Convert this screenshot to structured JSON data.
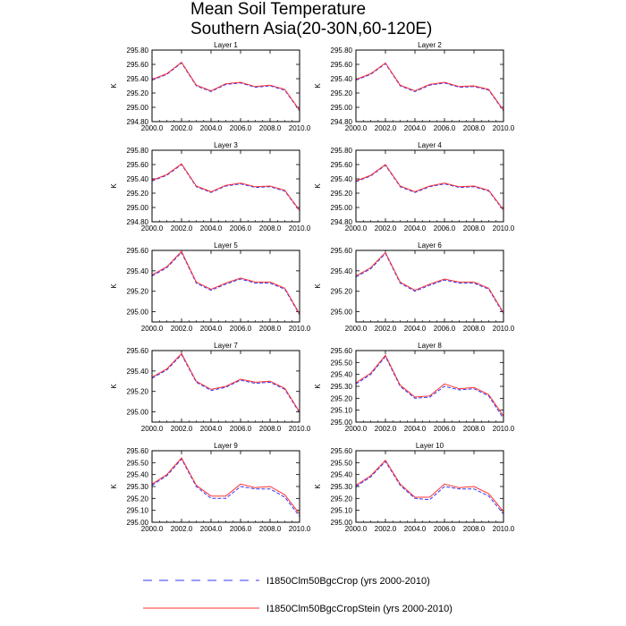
{
  "figure": {
    "title_line1": "Mean Soil Temperature",
    "title_line2": "Southern Asia(20-30N,60-120E)"
  },
  "legend": {
    "items": [
      {
        "label": "I1850Clm50BgcCrop (yrs 2000-2010)",
        "color": "#3333ff",
        "style": "dashed"
      },
      {
        "label": "I1850Clm50BgcCropStein (yrs 2000-2010)",
        "color": "#ff3333",
        "style": "solid"
      }
    ]
  },
  "chart_data": [
    {
      "type": "line",
      "title": "Layer 1",
      "xlabel": "",
      "ylabel": "K",
      "xlim": [
        2000,
        2010
      ],
      "ylim": [
        294.8,
        295.8
      ],
      "xticks": [
        2000,
        2002,
        2004,
        2006,
        2008,
        2010
      ],
      "xticklabels": [
        "2000.0",
        "2002.0",
        "2004.0",
        "2006.0",
        "2008.0",
        "2010.0"
      ],
      "yticks": [
        294.8,
        295.0,
        295.2,
        295.4,
        295.6,
        295.8
      ],
      "yticklabels": [
        "294.80",
        "295.00",
        "295.20",
        "295.40",
        "295.60",
        "295.80"
      ],
      "x": [
        2000,
        2001,
        2002,
        2003,
        2004,
        2005,
        2006,
        2007,
        2008,
        2009,
        2010
      ],
      "series": [
        {
          "name": "I1850Clm50BgcCrop (yrs 2000-2010)",
          "color": "#3333ff",
          "style": "dashed",
          "values": [
            295.38,
            295.46,
            295.62,
            295.3,
            295.22,
            295.32,
            295.34,
            295.28,
            295.3,
            295.24,
            294.95
          ]
        },
        {
          "name": "I1850Clm50BgcCropStein (yrs 2000-2010)",
          "color": "#ff3333",
          "style": "solid",
          "values": [
            295.39,
            295.47,
            295.63,
            295.31,
            295.23,
            295.33,
            295.35,
            295.29,
            295.31,
            295.25,
            294.96
          ]
        }
      ]
    },
    {
      "type": "line",
      "title": "Layer 2",
      "xlabel": "",
      "ylabel": "K",
      "xlim": [
        2000,
        2010
      ],
      "ylim": [
        294.8,
        295.8
      ],
      "xticks": [
        2000,
        2002,
        2004,
        2006,
        2008,
        2010
      ],
      "xticklabels": [
        "2000.0",
        "2002.0",
        "2004.0",
        "2006.0",
        "2008.0",
        "2010.0"
      ],
      "yticks": [
        294.8,
        295.0,
        295.2,
        295.4,
        295.6,
        295.8
      ],
      "yticklabels": [
        "294.80",
        "295.00",
        "295.20",
        "295.40",
        "295.60",
        "295.80"
      ],
      "x": [
        2000,
        2001,
        2002,
        2003,
        2004,
        2005,
        2006,
        2007,
        2008,
        2009,
        2010
      ],
      "series": [
        {
          "name": "I1850Clm50BgcCrop (yrs 2000-2010)",
          "color": "#3333ff",
          "style": "dashed",
          "values": [
            295.38,
            295.46,
            295.61,
            295.3,
            295.22,
            295.31,
            295.34,
            295.28,
            295.29,
            295.24,
            294.95
          ]
        },
        {
          "name": "I1850Clm50BgcCropStein (yrs 2000-2010)",
          "color": "#ff3333",
          "style": "solid",
          "values": [
            295.39,
            295.47,
            295.62,
            295.31,
            295.23,
            295.32,
            295.35,
            295.29,
            295.3,
            295.25,
            294.96
          ]
        }
      ]
    },
    {
      "type": "line",
      "title": "Layer 3",
      "xlabel": "",
      "ylabel": "K",
      "xlim": [
        2000,
        2010
      ],
      "ylim": [
        294.8,
        295.8
      ],
      "xticks": [
        2000,
        2002,
        2004,
        2006,
        2008,
        2010
      ],
      "xticklabels": [
        "2000.0",
        "2002.0",
        "2004.0",
        "2006.0",
        "2008.0",
        "2010.0"
      ],
      "yticks": [
        294.8,
        295.0,
        295.2,
        295.4,
        295.6,
        295.8
      ],
      "yticklabels": [
        "294.80",
        "295.00",
        "295.20",
        "295.40",
        "295.60",
        "295.80"
      ],
      "x": [
        2000,
        2001,
        2002,
        2003,
        2004,
        2005,
        2006,
        2007,
        2008,
        2009,
        2010
      ],
      "series": [
        {
          "name": "I1850Clm50BgcCrop (yrs 2000-2010)",
          "color": "#3333ff",
          "style": "dashed",
          "values": [
            295.37,
            295.45,
            295.6,
            295.29,
            295.21,
            295.3,
            295.33,
            295.28,
            295.29,
            295.23,
            294.95
          ]
        },
        {
          "name": "I1850Clm50BgcCropStein (yrs 2000-2010)",
          "color": "#ff3333",
          "style": "solid",
          "values": [
            295.38,
            295.46,
            295.61,
            295.3,
            295.22,
            295.31,
            295.34,
            295.29,
            295.3,
            295.24,
            294.96
          ]
        }
      ]
    },
    {
      "type": "line",
      "title": "Layer 4",
      "xlabel": "",
      "ylabel": "K",
      "xlim": [
        2000,
        2010
      ],
      "ylim": [
        294.8,
        295.8
      ],
      "xticks": [
        2000,
        2002,
        2004,
        2006,
        2008,
        2010
      ],
      "xticklabels": [
        "2000.0",
        "2002.0",
        "2004.0",
        "2006.0",
        "2008.0",
        "2010.0"
      ],
      "yticks": [
        294.8,
        295.0,
        295.2,
        295.4,
        295.6,
        295.8
      ],
      "yticklabels": [
        "294.80",
        "295.00",
        "295.20",
        "295.40",
        "295.60",
        "295.80"
      ],
      "x": [
        2000,
        2001,
        2002,
        2003,
        2004,
        2005,
        2006,
        2007,
        2008,
        2009,
        2010
      ],
      "series": [
        {
          "name": "I1850Clm50BgcCrop (yrs 2000-2010)",
          "color": "#3333ff",
          "style": "dashed",
          "values": [
            295.36,
            295.44,
            295.59,
            295.29,
            295.21,
            295.29,
            295.33,
            295.28,
            295.29,
            295.23,
            294.96
          ]
        },
        {
          "name": "I1850Clm50BgcCropStein (yrs 2000-2010)",
          "color": "#ff3333",
          "style": "solid",
          "values": [
            295.37,
            295.45,
            295.6,
            295.3,
            295.22,
            295.3,
            295.34,
            295.29,
            295.3,
            295.24,
            294.97
          ]
        }
      ]
    },
    {
      "type": "line",
      "title": "Layer 5",
      "xlabel": "",
      "ylabel": "K",
      "xlim": [
        2000,
        2010
      ],
      "ylim": [
        294.9,
        295.6
      ],
      "xticks": [
        2000,
        2002,
        2004,
        2006,
        2008,
        2010
      ],
      "xticklabels": [
        "2000.0",
        "2002.0",
        "2004.0",
        "2006.0",
        "2008.0",
        "2010.0"
      ],
      "yticks": [
        295.0,
        295.2,
        295.4,
        295.6
      ],
      "yticklabels": [
        "295.00",
        "295.20",
        "295.40",
        "295.60"
      ],
      "x": [
        2000,
        2001,
        2002,
        2003,
        2004,
        2005,
        2006,
        2007,
        2008,
        2009,
        2010
      ],
      "series": [
        {
          "name": "I1850Clm50BgcCrop (yrs 2000-2010)",
          "color": "#3333ff",
          "style": "dashed",
          "values": [
            295.35,
            295.43,
            295.58,
            295.28,
            295.21,
            295.27,
            295.32,
            295.28,
            295.28,
            295.22,
            294.97
          ]
        },
        {
          "name": "I1850Clm50BgcCropStein (yrs 2000-2010)",
          "color": "#ff3333",
          "style": "solid",
          "values": [
            295.36,
            295.44,
            295.59,
            295.29,
            295.22,
            295.28,
            295.33,
            295.29,
            295.29,
            295.23,
            294.98
          ]
        }
      ]
    },
    {
      "type": "line",
      "title": "Layer 6",
      "xlabel": "",
      "ylabel": "K",
      "xlim": [
        2000,
        2010
      ],
      "ylim": [
        294.9,
        295.6
      ],
      "xticks": [
        2000,
        2002,
        2004,
        2006,
        2008,
        2010
      ],
      "xticklabels": [
        "2000.0",
        "2002.0",
        "2004.0",
        "2006.0",
        "2008.0",
        "2010.0"
      ],
      "yticks": [
        295.0,
        295.2,
        295.4,
        295.6
      ],
      "yticklabels": [
        "295.00",
        "295.20",
        "295.40",
        "295.60"
      ],
      "x": [
        2000,
        2001,
        2002,
        2003,
        2004,
        2005,
        2006,
        2007,
        2008,
        2009,
        2010
      ],
      "series": [
        {
          "name": "I1850Clm50BgcCrop (yrs 2000-2010)",
          "color": "#3333ff",
          "style": "dashed",
          "values": [
            295.34,
            295.42,
            295.57,
            295.28,
            295.2,
            295.26,
            295.31,
            295.28,
            295.28,
            295.22,
            294.98
          ]
        },
        {
          "name": "I1850Clm50BgcCropStein (yrs 2000-2010)",
          "color": "#ff3333",
          "style": "solid",
          "values": [
            295.35,
            295.43,
            295.58,
            295.29,
            295.21,
            295.27,
            295.32,
            295.29,
            295.29,
            295.23,
            294.99
          ]
        }
      ]
    },
    {
      "type": "line",
      "title": "Layer 7",
      "xlabel": "",
      "ylabel": "K",
      "xlim": [
        2000,
        2010
      ],
      "ylim": [
        294.9,
        295.6
      ],
      "xticks": [
        2000,
        2002,
        2004,
        2006,
        2008,
        2010
      ],
      "xticklabels": [
        "2000.0",
        "2002.0",
        "2004.0",
        "2006.0",
        "2008.0",
        "2010.0"
      ],
      "yticks": [
        295.0,
        295.2,
        295.4,
        295.6
      ],
      "yticklabels": [
        "295.00",
        "295.20",
        "295.40",
        "295.60"
      ],
      "x": [
        2000,
        2001,
        2002,
        2003,
        2004,
        2005,
        2006,
        2007,
        2008,
        2009,
        2010
      ],
      "series": [
        {
          "name": "I1850Clm50BgcCrop (yrs 2000-2010)",
          "color": "#3333ff",
          "style": "dashed",
          "values": [
            295.33,
            295.41,
            295.56,
            295.29,
            295.21,
            295.24,
            295.31,
            295.28,
            295.29,
            295.22,
            294.99
          ]
        },
        {
          "name": "I1850Clm50BgcCropStein (yrs 2000-2010)",
          "color": "#ff3333",
          "style": "solid",
          "values": [
            295.34,
            295.42,
            295.57,
            295.3,
            295.22,
            295.25,
            295.32,
            295.29,
            295.3,
            295.23,
            295.0
          ]
        }
      ]
    },
    {
      "type": "line",
      "title": "Layer 8",
      "xlabel": "",
      "ylabel": "K",
      "xlim": [
        2000,
        2010
      ],
      "ylim": [
        295.0,
        295.6
      ],
      "xticks": [
        2000,
        2002,
        2004,
        2006,
        2008,
        2010
      ],
      "xticklabels": [
        "2000.0",
        "2002.0",
        "2004.0",
        "2006.0",
        "2008.0",
        "2010.0"
      ],
      "yticks": [
        295.0,
        295.1,
        295.2,
        295.3,
        295.4,
        295.5,
        295.6
      ],
      "yticklabels": [
        "295.00",
        "295.10",
        "295.20",
        "295.30",
        "295.40",
        "295.50",
        "295.60"
      ],
      "x": [
        2000,
        2001,
        2002,
        2003,
        2004,
        2005,
        2006,
        2007,
        2008,
        2009,
        2010
      ],
      "series": [
        {
          "name": "I1850Clm50BgcCrop (yrs 2000-2010)",
          "color": "#3333ff",
          "style": "dashed",
          "values": [
            295.32,
            295.4,
            295.55,
            295.3,
            295.2,
            295.21,
            295.3,
            295.27,
            295.28,
            295.22,
            295.03
          ]
        },
        {
          "name": "I1850Clm50BgcCropStein (yrs 2000-2010)",
          "color": "#ff3333",
          "style": "solid",
          "values": [
            295.33,
            295.41,
            295.56,
            295.31,
            295.21,
            295.22,
            295.32,
            295.28,
            295.29,
            295.23,
            295.05
          ]
        }
      ]
    },
    {
      "type": "line",
      "title": "Layer 9",
      "xlabel": "",
      "ylabel": "K",
      "xlim": [
        2000,
        2010
      ],
      "ylim": [
        295.0,
        295.6
      ],
      "xticks": [
        2000,
        2002,
        2004,
        2006,
        2008,
        2010
      ],
      "xticklabels": [
        "2000.0",
        "2002.0",
        "2004.0",
        "2006.0",
        "2008.0",
        "2010.0"
      ],
      "yticks": [
        295.0,
        295.1,
        295.2,
        295.3,
        295.4,
        295.5,
        295.6
      ],
      "yticklabels": [
        "295.00",
        "295.10",
        "295.20",
        "295.30",
        "295.40",
        "295.50",
        "295.60"
      ],
      "x": [
        2000,
        2001,
        2002,
        2003,
        2004,
        2005,
        2006,
        2007,
        2008,
        2009,
        2010
      ],
      "series": [
        {
          "name": "I1850Clm50BgcCrop (yrs 2000-2010)",
          "color": "#3333ff",
          "style": "dashed",
          "values": [
            295.31,
            295.39,
            295.53,
            295.3,
            295.2,
            295.2,
            295.3,
            295.28,
            295.28,
            295.21,
            295.05
          ]
        },
        {
          "name": "I1850Clm50BgcCropStein (yrs 2000-2010)",
          "color": "#ff3333",
          "style": "solid",
          "values": [
            295.32,
            295.4,
            295.54,
            295.31,
            295.22,
            295.22,
            295.32,
            295.29,
            295.3,
            295.23,
            295.07
          ]
        }
      ]
    },
    {
      "type": "line",
      "title": "Layer 10",
      "xlabel": "",
      "ylabel": "K",
      "xlim": [
        2000,
        2010
      ],
      "ylim": [
        295.0,
        295.6
      ],
      "xticks": [
        2000,
        2002,
        2004,
        2006,
        2008,
        2010
      ],
      "xticklabels": [
        "2000.0",
        "2002.0",
        "2004.0",
        "2006.0",
        "2008.0",
        "2010.0"
      ],
      "yticks": [
        295.0,
        295.1,
        295.2,
        295.3,
        295.4,
        295.5,
        295.6
      ],
      "yticklabels": [
        "295.00",
        "295.10",
        "295.20",
        "295.30",
        "295.40",
        "295.50",
        "295.60"
      ],
      "x": [
        2000,
        2001,
        2002,
        2003,
        2004,
        2005,
        2006,
        2007,
        2008,
        2009,
        2010
      ],
      "series": [
        {
          "name": "I1850Clm50BgcCrop (yrs 2000-2010)",
          "color": "#3333ff",
          "style": "dashed",
          "values": [
            295.3,
            295.38,
            295.51,
            295.31,
            295.2,
            295.19,
            295.3,
            295.28,
            295.28,
            295.22,
            295.07
          ]
        },
        {
          "name": "I1850Clm50BgcCropStein (yrs 2000-2010)",
          "color": "#ff3333",
          "style": "solid",
          "values": [
            295.31,
            295.39,
            295.52,
            295.32,
            295.21,
            295.21,
            295.32,
            295.29,
            295.3,
            295.24,
            295.09
          ]
        }
      ]
    }
  ]
}
